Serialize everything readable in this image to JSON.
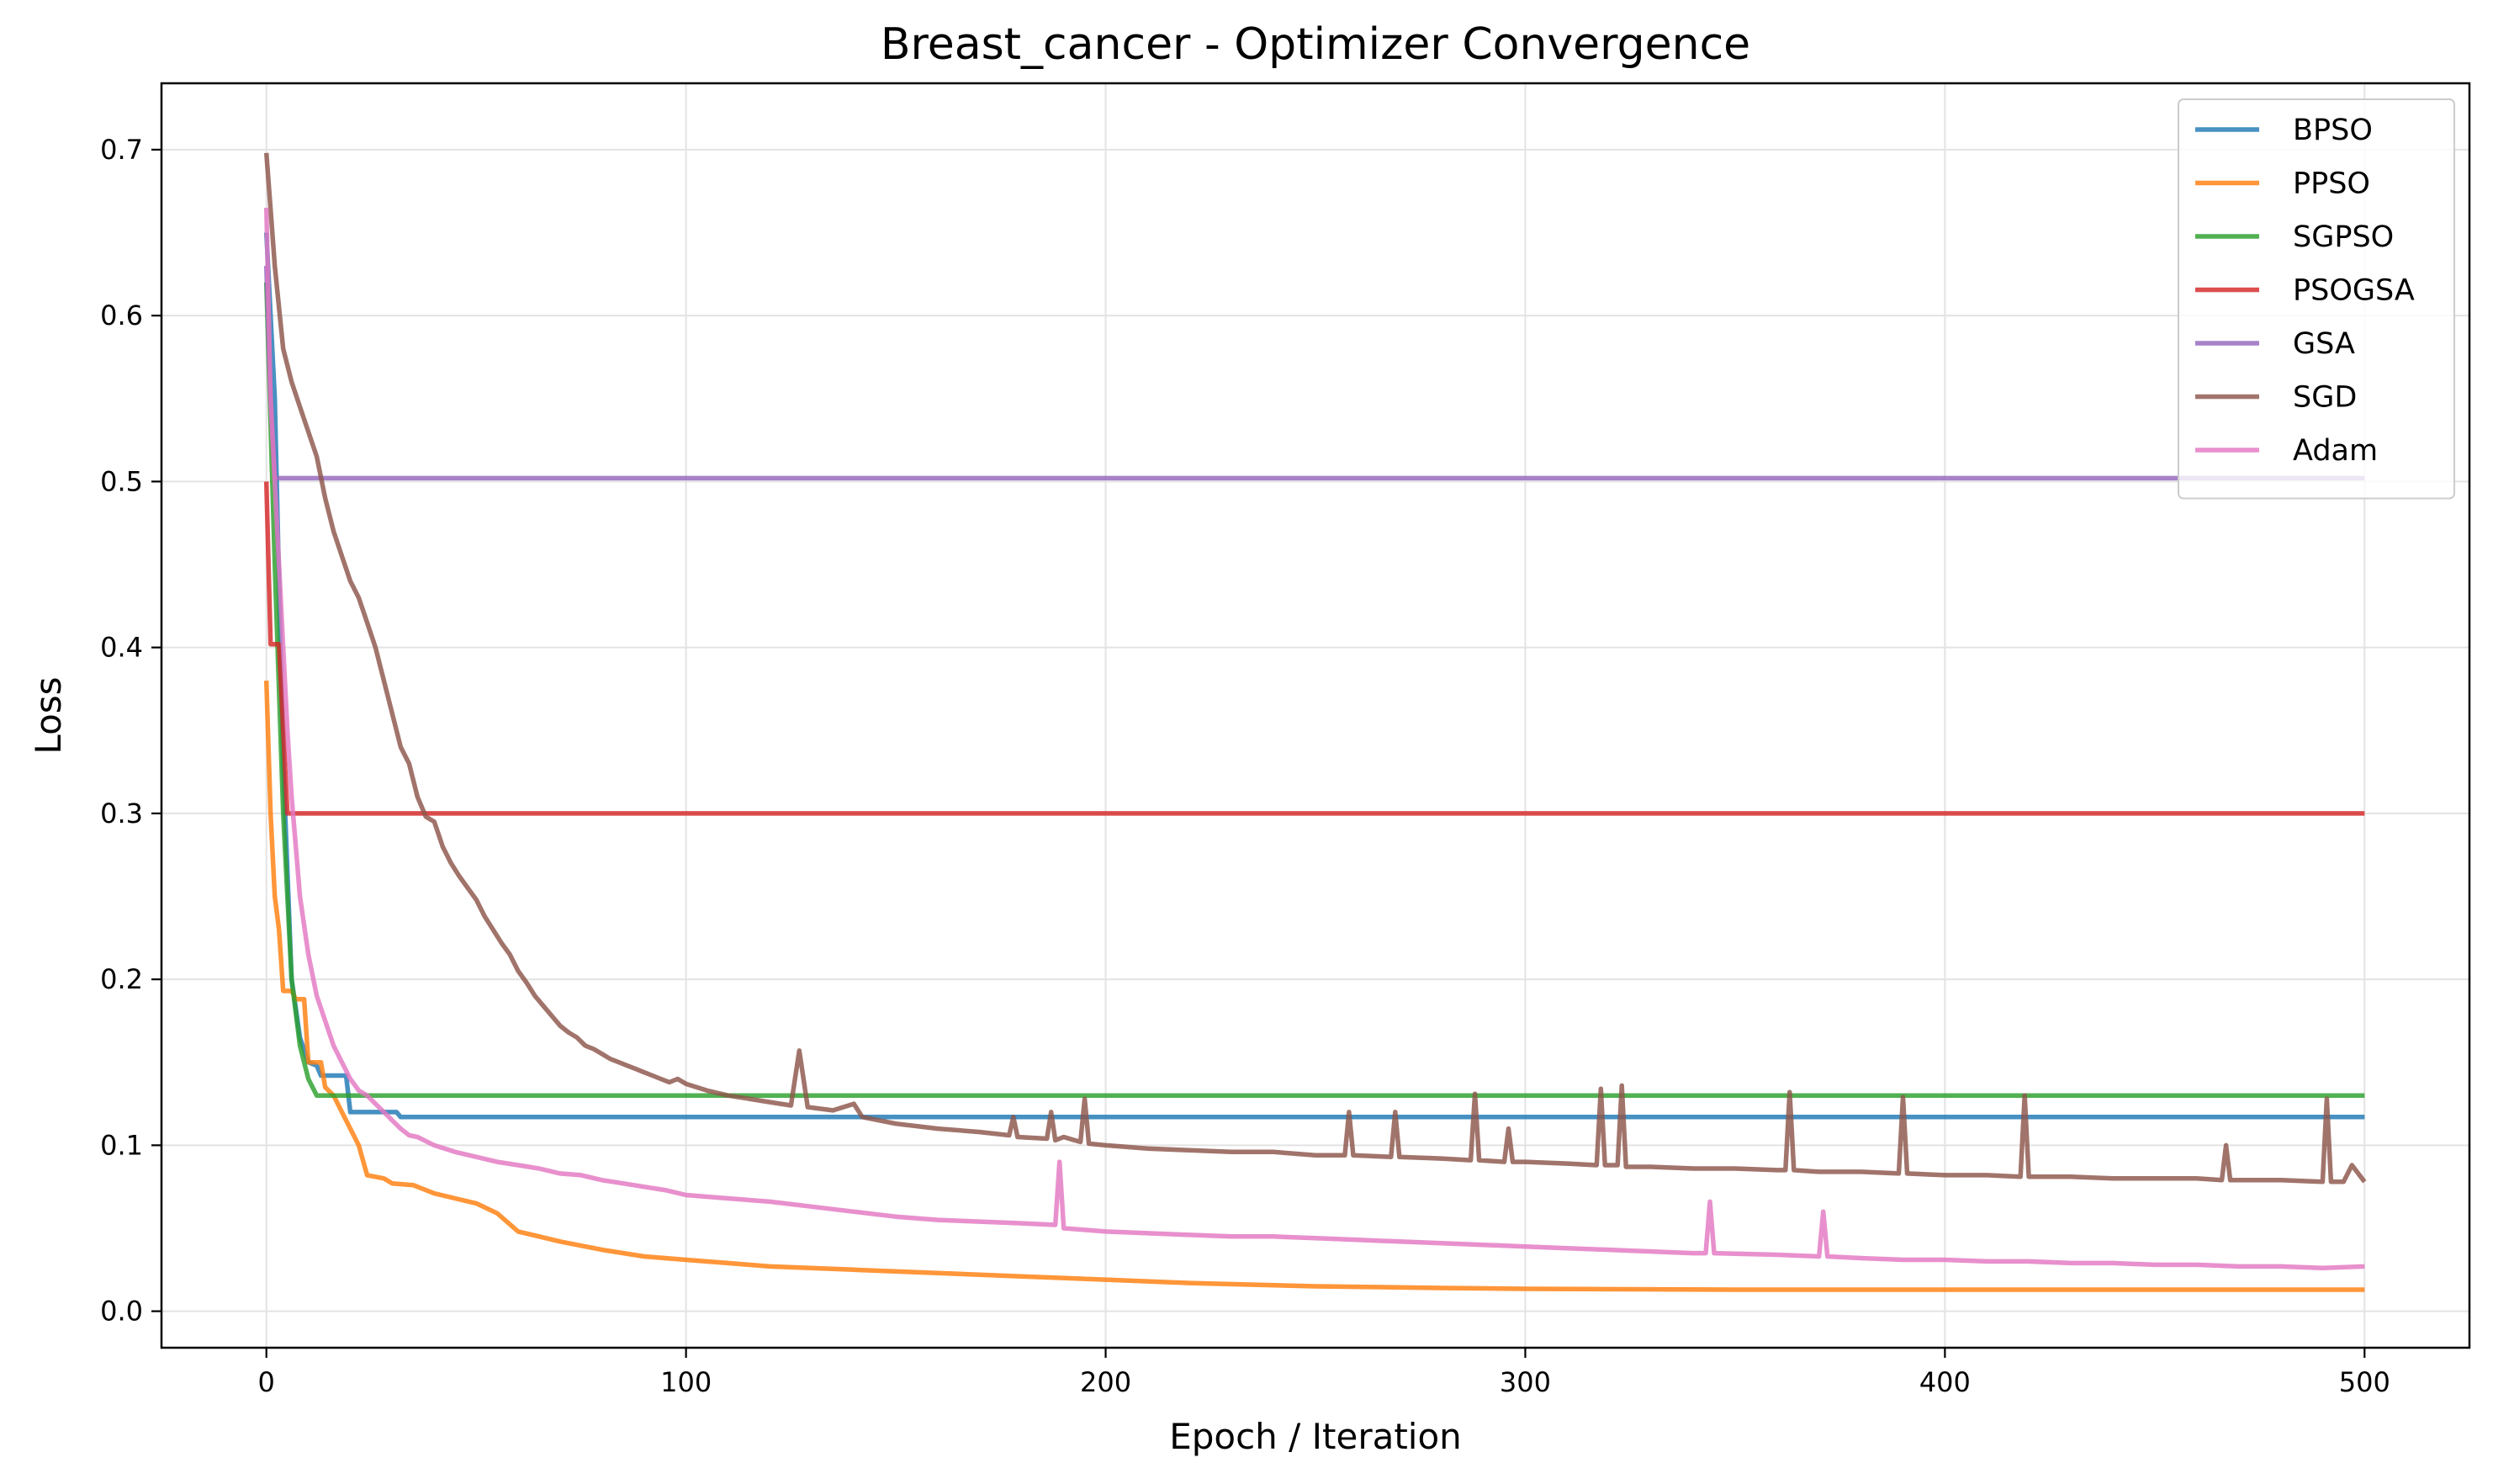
{
  "chart_data": {
    "type": "line",
    "title": "Breast_cancer - Optimizer Convergence",
    "xlabel": "Epoch / Iteration",
    "ylabel": "Loss",
    "xlim": [
      -25,
      525
    ],
    "ylim": [
      -0.022,
      0.74
    ],
    "xticks": [
      0,
      100,
      200,
      300,
      400,
      500
    ],
    "yticks": [
      0.0,
      0.1,
      0.2,
      0.3,
      0.4,
      0.5,
      0.6,
      0.7
    ],
    "grid": true,
    "legend_position": "top-right",
    "series": [
      {
        "name": "BPSO",
        "color": "#1f77b4",
        "points": [
          [
            0,
            0.65
          ],
          [
            2,
            0.55
          ],
          [
            4,
            0.33
          ],
          [
            6,
            0.2
          ],
          [
            8,
            0.165
          ],
          [
            10,
            0.15
          ],
          [
            12,
            0.148
          ],
          [
            13,
            0.142
          ],
          [
            19,
            0.142
          ],
          [
            20,
            0.12
          ],
          [
            31,
            0.12
          ],
          [
            32,
            0.117
          ],
          [
            500,
            0.117
          ]
        ]
      },
      {
        "name": "PPSO",
        "color": "#ff7f0e",
        "points": [
          [
            0,
            0.38
          ],
          [
            1,
            0.3
          ],
          [
            2,
            0.25
          ],
          [
            3,
            0.23
          ],
          [
            4,
            0.193
          ],
          [
            6,
            0.193
          ],
          [
            7,
            0.188
          ],
          [
            9,
            0.188
          ],
          [
            10,
            0.15
          ],
          [
            13,
            0.15
          ],
          [
            14,
            0.135
          ],
          [
            16,
            0.13
          ],
          [
            18,
            0.12
          ],
          [
            20,
            0.11
          ],
          [
            22,
            0.1
          ],
          [
            24,
            0.082
          ],
          [
            28,
            0.08
          ],
          [
            30,
            0.077
          ],
          [
            35,
            0.076
          ],
          [
            40,
            0.071
          ],
          [
            45,
            0.068
          ],
          [
            50,
            0.065
          ],
          [
            55,
            0.059
          ],
          [
            60,
            0.048
          ],
          [
            65,
            0.045
          ],
          [
            70,
            0.042
          ],
          [
            80,
            0.037
          ],
          [
            90,
            0.033
          ],
          [
            100,
            0.031
          ],
          [
            110,
            0.029
          ],
          [
            120,
            0.027
          ],
          [
            140,
            0.025
          ],
          [
            160,
            0.023
          ],
          [
            180,
            0.021
          ],
          [
            200,
            0.019
          ],
          [
            220,
            0.017
          ],
          [
            250,
            0.015
          ],
          [
            280,
            0.014
          ],
          [
            300,
            0.0135
          ],
          [
            350,
            0.013
          ],
          [
            400,
            0.013
          ],
          [
            500,
            0.013
          ]
        ]
      },
      {
        "name": "SGPSO",
        "color": "#2ca02c",
        "points": [
          [
            0,
            0.62
          ],
          [
            2,
            0.45
          ],
          [
            4,
            0.3
          ],
          [
            6,
            0.2
          ],
          [
            8,
            0.16
          ],
          [
            10,
            0.14
          ],
          [
            12,
            0.13
          ],
          [
            500,
            0.13
          ]
        ]
      },
      {
        "name": "PSOGSA",
        "color": "#d62728",
        "points": [
          [
            0,
            0.5
          ],
          [
            1,
            0.402
          ],
          [
            3,
            0.402
          ],
          [
            5,
            0.3
          ],
          [
            500,
            0.3
          ]
        ]
      },
      {
        "name": "GSA",
        "color": "#9467bd",
        "points": [
          [
            0,
            0.63
          ],
          [
            1,
            0.55
          ],
          [
            2,
            0.502
          ],
          [
            500,
            0.502
          ]
        ]
      },
      {
        "name": "SGD",
        "color": "#8c564b",
        "points": [
          [
            0,
            0.698
          ],
          [
            2,
            0.63
          ],
          [
            4,
            0.58
          ],
          [
            6,
            0.56
          ],
          [
            8,
            0.545
          ],
          [
            10,
            0.53
          ],
          [
            12,
            0.515
          ],
          [
            14,
            0.49
          ],
          [
            16,
            0.47
          ],
          [
            18,
            0.455
          ],
          [
            20,
            0.44
          ],
          [
            22,
            0.43
          ],
          [
            24,
            0.415
          ],
          [
            26,
            0.4
          ],
          [
            28,
            0.38
          ],
          [
            30,
            0.36
          ],
          [
            32,
            0.34
          ],
          [
            34,
            0.33
          ],
          [
            36,
            0.31
          ],
          [
            38,
            0.298
          ],
          [
            40,
            0.295
          ],
          [
            42,
            0.28
          ],
          [
            44,
            0.27
          ],
          [
            46,
            0.262
          ],
          [
            48,
            0.255
          ],
          [
            50,
            0.248
          ],
          [
            52,
            0.238
          ],
          [
            54,
            0.23
          ],
          [
            56,
            0.222
          ],
          [
            58,
            0.215
          ],
          [
            60,
            0.205
          ],
          [
            62,
            0.198
          ],
          [
            64,
            0.19
          ],
          [
            66,
            0.184
          ],
          [
            68,
            0.178
          ],
          [
            70,
            0.172
          ],
          [
            72,
            0.168
          ],
          [
            74,
            0.165
          ],
          [
            76,
            0.16
          ],
          [
            78,
            0.158
          ],
          [
            80,
            0.155
          ],
          [
            82,
            0.152
          ],
          [
            84,
            0.15
          ],
          [
            86,
            0.148
          ],
          [
            88,
            0.146
          ],
          [
            90,
            0.144
          ],
          [
            92,
            0.142
          ],
          [
            94,
            0.14
          ],
          [
            96,
            0.138
          ],
          [
            98,
            0.14
          ],
          [
            100,
            0.137
          ],
          [
            105,
            0.133
          ],
          [
            110,
            0.13
          ],
          [
            115,
            0.128
          ],
          [
            120,
            0.126
          ],
          [
            125,
            0.124
          ],
          [
            127,
            0.157
          ],
          [
            129,
            0.123
          ],
          [
            135,
            0.121
          ],
          [
            140,
            0.125
          ],
          [
            142,
            0.117
          ],
          [
            150,
            0.113
          ],
          [
            160,
            0.11
          ],
          [
            170,
            0.108
          ],
          [
            177,
            0.106
          ],
          [
            178,
            0.117
          ],
          [
            179,
            0.105
          ],
          [
            186,
            0.104
          ],
          [
            187,
            0.12
          ],
          [
            188,
            0.103
          ],
          [
            190,
            0.105
          ],
          [
            194,
            0.102
          ],
          [
            195,
            0.128
          ],
          [
            196,
            0.101
          ],
          [
            200,
            0.1
          ],
          [
            210,
            0.098
          ],
          [
            220,
            0.097
          ],
          [
            230,
            0.096
          ],
          [
            240,
            0.096
          ],
          [
            250,
            0.094
          ],
          [
            257,
            0.094
          ],
          [
            258,
            0.12
          ],
          [
            259,
            0.094
          ],
          [
            268,
            0.093
          ],
          [
            269,
            0.12
          ],
          [
            270,
            0.093
          ],
          [
            280,
            0.092
          ],
          [
            287,
            0.091
          ],
          [
            288,
            0.131
          ],
          [
            289,
            0.091
          ],
          [
            295,
            0.09
          ],
          [
            296,
            0.11
          ],
          [
            297,
            0.09
          ],
          [
            300,
            0.09
          ],
          [
            310,
            0.089
          ],
          [
            317,
            0.088
          ],
          [
            318,
            0.134
          ],
          [
            319,
            0.088
          ],
          [
            322,
            0.088
          ],
          [
            323,
            0.136
          ],
          [
            324,
            0.087
          ],
          [
            330,
            0.087
          ],
          [
            340,
            0.086
          ],
          [
            350,
            0.086
          ],
          [
            360,
            0.085
          ],
          [
            362,
            0.085
          ],
          [
            363,
            0.132
          ],
          [
            364,
            0.085
          ],
          [
            370,
            0.084
          ],
          [
            380,
            0.084
          ],
          [
            389,
            0.083
          ],
          [
            390,
            0.129
          ],
          [
            391,
            0.083
          ],
          [
            400,
            0.082
          ],
          [
            410,
            0.082
          ],
          [
            418,
            0.081
          ],
          [
            419,
            0.13
          ],
          [
            420,
            0.081
          ],
          [
            430,
            0.081
          ],
          [
            440,
            0.08
          ],
          [
            450,
            0.08
          ],
          [
            460,
            0.08
          ],
          [
            466,
            0.079
          ],
          [
            467,
            0.1
          ],
          [
            468,
            0.079
          ],
          [
            480,
            0.079
          ],
          [
            490,
            0.078
          ],
          [
            491,
            0.128
          ],
          [
            492,
            0.078
          ],
          [
            495,
            0.078
          ],
          [
            497,
            0.088
          ],
          [
            500,
            0.078
          ]
        ]
      },
      {
        "name": "Adam",
        "color": "#e377c2",
        "points": [
          [
            0,
            0.665
          ],
          [
            1,
            0.55
          ],
          [
            2,
            0.5
          ],
          [
            3,
            0.45
          ],
          [
            4,
            0.4
          ],
          [
            5,
            0.35
          ],
          [
            6,
            0.31
          ],
          [
            7,
            0.28
          ],
          [
            8,
            0.25
          ],
          [
            10,
            0.215
          ],
          [
            12,
            0.19
          ],
          [
            14,
            0.175
          ],
          [
            16,
            0.16
          ],
          [
            18,
            0.15
          ],
          [
            20,
            0.14
          ],
          [
            22,
            0.133
          ],
          [
            24,
            0.13
          ],
          [
            26,
            0.125
          ],
          [
            28,
            0.12
          ],
          [
            30,
            0.115
          ],
          [
            32,
            0.11
          ],
          [
            34,
            0.106
          ],
          [
            36,
            0.105
          ],
          [
            40,
            0.1
          ],
          [
            45,
            0.096
          ],
          [
            50,
            0.093
          ],
          [
            55,
            0.09
          ],
          [
            60,
            0.088
          ],
          [
            65,
            0.086
          ],
          [
            70,
            0.083
          ],
          [
            75,
            0.082
          ],
          [
            80,
            0.079
          ],
          [
            85,
            0.077
          ],
          [
            90,
            0.075
          ],
          [
            95,
            0.073
          ],
          [
            100,
            0.07
          ],
          [
            110,
            0.068
          ],
          [
            120,
            0.066
          ],
          [
            130,
            0.063
          ],
          [
            140,
            0.06
          ],
          [
            150,
            0.057
          ],
          [
            160,
            0.055
          ],
          [
            170,
            0.054
          ],
          [
            180,
            0.053
          ],
          [
            188,
            0.052
          ],
          [
            189,
            0.09
          ],
          [
            190,
            0.05
          ],
          [
            200,
            0.048
          ],
          [
            210,
            0.047
          ],
          [
            220,
            0.046
          ],
          [
            230,
            0.045
          ],
          [
            240,
            0.045
          ],
          [
            250,
            0.044
          ],
          [
            260,
            0.043
          ],
          [
            270,
            0.042
          ],
          [
            280,
            0.041
          ],
          [
            290,
            0.04
          ],
          [
            300,
            0.039
          ],
          [
            310,
            0.038
          ],
          [
            320,
            0.037
          ],
          [
            330,
            0.036
          ],
          [
            340,
            0.035
          ],
          [
            343,
            0.035
          ],
          [
            344,
            0.066
          ],
          [
            345,
            0.035
          ],
          [
            360,
            0.034
          ],
          [
            370,
            0.033
          ],
          [
            371,
            0.06
          ],
          [
            372,
            0.033
          ],
          [
            380,
            0.032
          ],
          [
            390,
            0.031
          ],
          [
            400,
            0.031
          ],
          [
            410,
            0.03
          ],
          [
            420,
            0.03
          ],
          [
            430,
            0.029
          ],
          [
            440,
            0.029
          ],
          [
            450,
            0.028
          ],
          [
            460,
            0.028
          ],
          [
            470,
            0.027
          ],
          [
            480,
            0.027
          ],
          [
            490,
            0.026
          ],
          [
            500,
            0.027
          ]
        ]
      }
    ]
  }
}
